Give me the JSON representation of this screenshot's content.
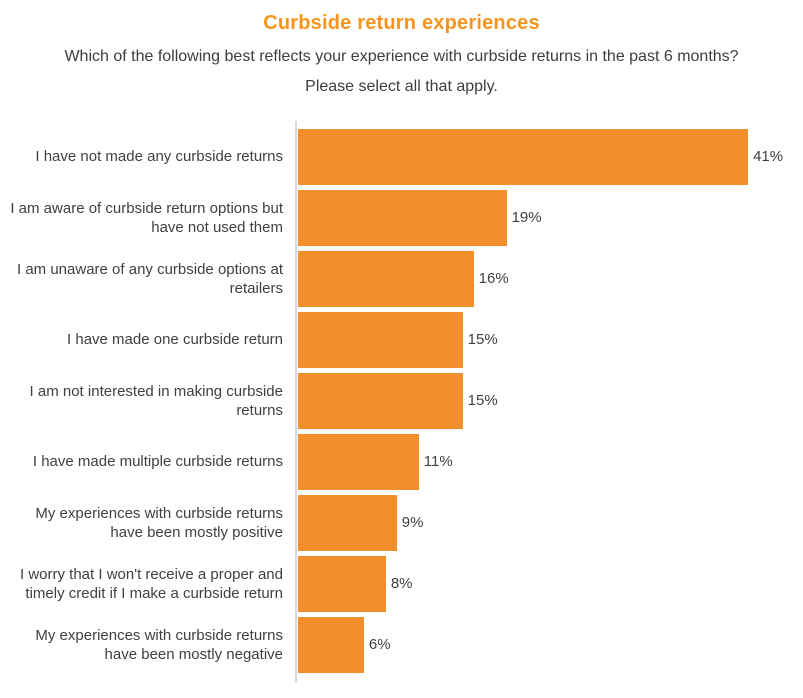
{
  "chart_data": {
    "type": "bar",
    "orientation": "horizontal",
    "title": "Curbside return experiences",
    "subtitle_lines": [
      "Which of the following best reflects your experience with curbside returns in the past 6 months?",
      "Please select all that apply."
    ],
    "categories": [
      "I have not made any curbside returns",
      "I am aware of curbside return options but have not used them",
      "I am unaware of any curbside options at retailers",
      "I have made one curbside return",
      "I am not interested in making curbside returns",
      "I have made multiple curbside returns",
      "My experiences with curbside returns have been mostly positive",
      "I worry that I won't receive a proper and timely credit if I make a curbside return",
      "My experiences with curbside returns have been mostly negative"
    ],
    "values": [
      41,
      19,
      16,
      15,
      15,
      11,
      9,
      8,
      6
    ],
    "value_labels": [
      "41%",
      "19%",
      "16%",
      "15%",
      "15%",
      "11%",
      "9%",
      "8%",
      "6%"
    ],
    "xlim": [
      0,
      46
    ],
    "grid": false,
    "legend": false,
    "colors": {
      "bar": "#F28E2B",
      "title": "#F7941E",
      "label": "#404040",
      "axis_line": "#D8D8D8",
      "background": "#FFFFFF"
    }
  }
}
